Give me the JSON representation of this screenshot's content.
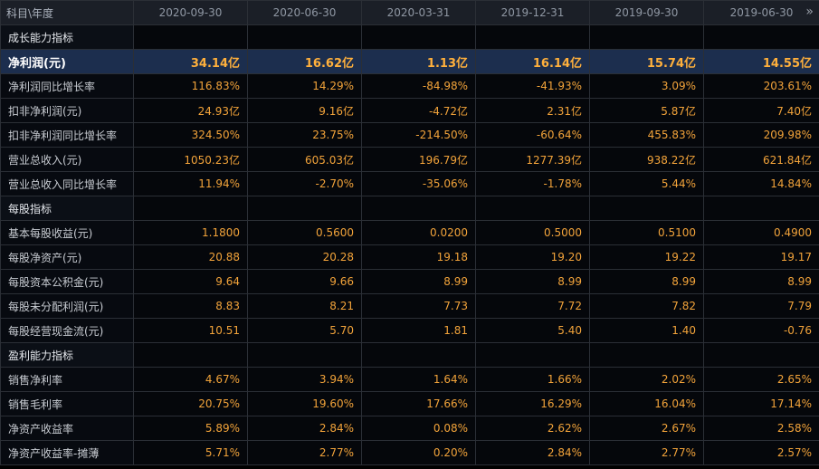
{
  "header": {
    "corner_label": "科目\\年度",
    "periods": [
      "2020-09-30",
      "2020-06-30",
      "2020-03-31",
      "2019-12-31",
      "2019-09-30",
      "2019-06-30"
    ],
    "more_icon_glyph": "»"
  },
  "rows": [
    {
      "type": "section",
      "label": "成长能力指标"
    },
    {
      "type": "data",
      "highlight": true,
      "label": "净利润(元)",
      "values": [
        "34.14亿",
        "16.62亿",
        "1.13亿",
        "16.14亿",
        "15.74亿",
        "14.55亿"
      ]
    },
    {
      "type": "data",
      "label": "净利润同比增长率",
      "values": [
        "116.83%",
        "14.29%",
        "-84.98%",
        "-41.93%",
        "3.09%",
        "203.61%"
      ]
    },
    {
      "type": "data",
      "label": "扣非净利润(元)",
      "values": [
        "24.93亿",
        "9.16亿",
        "-4.72亿",
        "2.31亿",
        "5.87亿",
        "7.40亿"
      ]
    },
    {
      "type": "data",
      "label": "扣非净利润同比增长率",
      "values": [
        "324.50%",
        "23.75%",
        "-214.50%",
        "-60.64%",
        "455.83%",
        "209.98%"
      ]
    },
    {
      "type": "data",
      "label": "营业总收入(元)",
      "values": [
        "1050.23亿",
        "605.03亿",
        "196.79亿",
        "1277.39亿",
        "938.22亿",
        "621.84亿"
      ]
    },
    {
      "type": "data",
      "label": "营业总收入同比增长率",
      "values": [
        "11.94%",
        "-2.70%",
        "-35.06%",
        "-1.78%",
        "5.44%",
        "14.84%"
      ]
    },
    {
      "type": "section",
      "label": "每股指标"
    },
    {
      "type": "data",
      "label": "基本每股收益(元)",
      "values": [
        "1.1800",
        "0.5600",
        "0.0200",
        "0.5000",
        "0.5100",
        "0.4900"
      ]
    },
    {
      "type": "data",
      "label": "每股净资产(元)",
      "values": [
        "20.88",
        "20.28",
        "19.18",
        "19.20",
        "19.22",
        "19.17"
      ]
    },
    {
      "type": "data",
      "label": "每股资本公积金(元)",
      "values": [
        "9.64",
        "9.66",
        "8.99",
        "8.99",
        "8.99",
        "8.99"
      ]
    },
    {
      "type": "data",
      "label": "每股未分配利润(元)",
      "values": [
        "8.83",
        "8.21",
        "7.73",
        "7.72",
        "7.82",
        "7.79"
      ]
    },
    {
      "type": "data",
      "label": "每股经营现金流(元)",
      "values": [
        "10.51",
        "5.70",
        "1.81",
        "5.40",
        "1.40",
        "-0.76"
      ]
    },
    {
      "type": "section",
      "label": "盈利能力指标"
    },
    {
      "type": "data",
      "label": "销售净利率",
      "values": [
        "4.67%",
        "3.94%",
        "1.64%",
        "1.66%",
        "2.02%",
        "2.65%"
      ]
    },
    {
      "type": "data",
      "label": "销售毛利率",
      "values": [
        "20.75%",
        "19.60%",
        "17.66%",
        "16.29%",
        "16.04%",
        "17.14%"
      ]
    },
    {
      "type": "data",
      "label": "净资产收益率",
      "values": [
        "5.89%",
        "2.84%",
        "0.08%",
        "2.62%",
        "2.67%",
        "2.58%"
      ]
    },
    {
      "type": "data",
      "label": "净资产收益率-摊薄",
      "values": [
        "5.71%",
        "2.77%",
        "0.20%",
        "2.84%",
        "2.77%",
        "2.57%"
      ]
    }
  ]
}
